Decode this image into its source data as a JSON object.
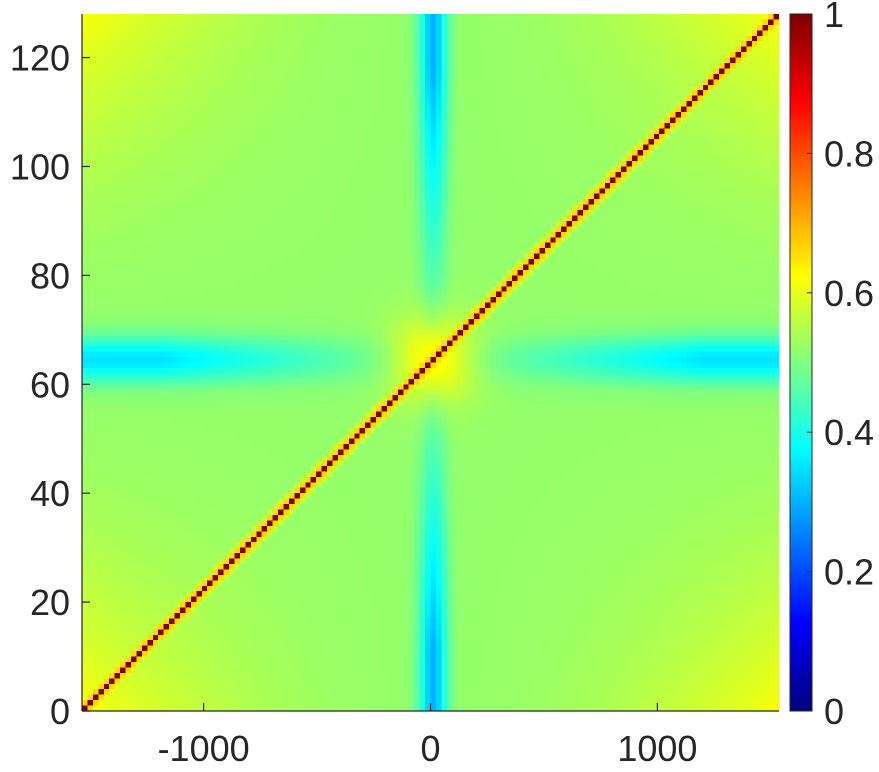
{
  "chart_data": {
    "type": "heatmap",
    "title": "",
    "xlabel": "",
    "ylabel": "",
    "xlim": [
      -1536,
      1536
    ],
    "ylim": [
      0,
      128
    ],
    "clim": [
      0,
      1
    ],
    "colormap": "jet",
    "grid": false,
    "x_ticks": [
      {
        "value": -1000,
        "label": "-1000"
      },
      {
        "value": 0,
        "label": "0"
      },
      {
        "value": 1000,
        "label": "1000"
      }
    ],
    "y_ticks": [
      {
        "value": 0,
        "label": "0"
      },
      {
        "value": 20,
        "label": "20"
      },
      {
        "value": 40,
        "label": "40"
      },
      {
        "value": 60,
        "label": "60"
      },
      {
        "value": 80,
        "label": "80"
      },
      {
        "value": 100,
        "label": "100"
      },
      {
        "value": 120,
        "label": "120"
      }
    ],
    "colorbar": {
      "placement": "right",
      "ticks": [
        {
          "value": 0,
          "label": "0"
        },
        {
          "value": 0.2,
          "label": "0.2"
        },
        {
          "value": 0.4,
          "label": "0.4"
        },
        {
          "value": 0.6,
          "label": "0.6"
        },
        {
          "value": 0.8,
          "label": "0.8"
        },
        {
          "value": 1,
          "label": "1"
        }
      ]
    },
    "features": {
      "diagonal_value": 1.0,
      "near_diagonal_value": 0.7,
      "background_value": 0.52,
      "center_row_minimum": 0.3,
      "center_column_minimum": 0.2,
      "corner_value": 0.62
    }
  }
}
